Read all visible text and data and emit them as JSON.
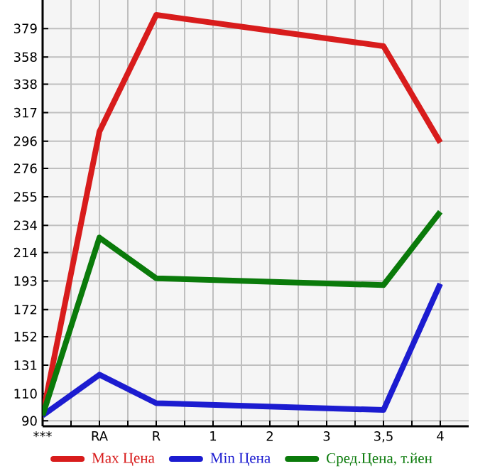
{
  "chart_data": {
    "type": "line",
    "categories": [
      "***",
      "RA",
      "R",
      "1",
      "2",
      "3",
      "3,5",
      "4"
    ],
    "series": [
      {
        "name": "Max Цена",
        "color": "#d81c1c",
        "values": [
          94,
          303,
          389,
          null,
          null,
          null,
          366,
          295
        ]
      },
      {
        "name": "Min Цена",
        "color": "#1c1cd0",
        "values": [
          94,
          124,
          103,
          null,
          null,
          null,
          98,
          191
        ]
      },
      {
        "name": "Сред.Цена, т.йен",
        "color": "#0a7a0a",
        "values": [
          94,
          225,
          195,
          null,
          null,
          null,
          190,
          244
        ]
      }
    ],
    "ylim": [
      86,
      400
    ],
    "yticks": [
      90,
      110,
      131,
      152,
      172,
      193,
      214,
      234,
      255,
      276,
      296,
      317,
      338,
      358,
      379
    ],
    "grid": true,
    "legend": "bottom",
    "marker": "none",
    "line_style": "solid"
  }
}
